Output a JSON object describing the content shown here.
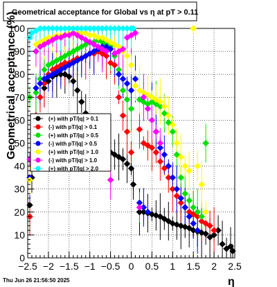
{
  "chart_data": {
    "type": "scatter",
    "title": "Geometrical acceptance for Global vs   η  at pT > 0.11",
    "xlabel": "η",
    "ylabel": "Geometrical acceptance (%)",
    "xlim": [
      -2.5,
      2.5
    ],
    "ylim": [
      0,
      100
    ],
    "grid": true,
    "legend_position": "left-middle",
    "x_ticks": [
      -2.5,
      -2,
      -1.5,
      -1,
      -0.5,
      0,
      0.5,
      1,
      1.5,
      2,
      2.5
    ],
    "x_tick_labels": [
      "−2.5",
      "−2",
      "−1.5",
      "−1",
      "−0.5",
      "0",
      "0.5",
      "1",
      "1.5",
      "2",
      "2.5"
    ],
    "y_ticks": [
      0,
      10,
      20,
      30,
      40,
      50,
      60,
      70,
      80,
      90,
      100
    ],
    "y_tick_labels": [
      "0",
      "10",
      "20",
      "30",
      "40",
      "50",
      "60",
      "70",
      "80",
      "90",
      "100"
    ],
    "series": [
      {
        "name": "(+) with pT/|q| > 0.1",
        "color": "#000000",
        "x": [
          -2.45,
          -2.4,
          -2.3,
          -2.2,
          -2.1,
          -2.0,
          -1.9,
          -1.8,
          -1.7,
          -1.6,
          -1.5,
          -1.4,
          -1.3,
          -1.2,
          -1.1,
          -1.0,
          -0.9,
          -0.8,
          -0.7,
          -0.6,
          -0.5,
          -0.4,
          -0.3,
          -0.2,
          -0.1,
          0.0,
          0.05,
          0.2,
          0.3,
          0.4,
          0.5,
          0.6,
          0.7,
          0.8,
          0.9,
          1.0,
          1.1,
          1.2,
          1.3,
          1.4,
          1.5,
          1.6,
          1.7,
          1.8,
          1.9,
          2.0,
          2.1,
          2.2,
          2.3,
          2.4,
          2.45
        ],
        "values": [
          23,
          35,
          62,
          70,
          74,
          77,
          79,
          80,
          80,
          80,
          79,
          77,
          73,
          68,
          63,
          58,
          54,
          51,
          49,
          47,
          46,
          45,
          44,
          43,
          41,
          39,
          32,
          20,
          20,
          19.5,
          19,
          18.5,
          18,
          17,
          16,
          15,
          14.5,
          14,
          13.5,
          13,
          12,
          11.5,
          11,
          10.5,
          9,
          10,
          12,
          6,
          4,
          5,
          3
        ]
      },
      {
        "name": "(-) with pT/|q| > 0.1",
        "color": "#ff0000",
        "x": [
          -2.45,
          -2.3,
          -2.2,
          -2.1,
          -2.0,
          -1.9,
          -1.8,
          -1.7,
          -1.6,
          -1.5,
          -1.4,
          -1.3,
          -1.2,
          -1.1,
          -1.0,
          -0.9,
          -0.8,
          -0.7,
          -0.6,
          -0.5,
          -0.4,
          -0.3,
          -0.2,
          -0.1,
          0.0,
          0.2,
          0.3,
          0.4,
          0.5,
          0.6,
          0.7,
          0.8,
          0.9,
          1.0,
          1.1,
          1.2,
          1.3,
          1.4,
          1.5,
          1.6,
          1.7,
          1.8,
          1.9,
          2.0
        ],
        "values": [
          18,
          62,
          70,
          76,
          80,
          82,
          83,
          84,
          85,
          85,
          86,
          87,
          87,
          88,
          89,
          89,
          90,
          89,
          88,
          85,
          84,
          70,
          62,
          55,
          46,
          56,
          50,
          49,
          48,
          46,
          42,
          39,
          35,
          30,
          27,
          24,
          22,
          20,
          19,
          18,
          16,
          15,
          14,
          12
        ]
      },
      {
        "name": "(+) with pT/|q| > 0.5",
        "color": "#00e000",
        "x": [
          -2.45,
          -2.3,
          -2.2,
          -2.1,
          -2.0,
          -1.9,
          -1.8,
          -1.7,
          -1.6,
          -1.5,
          -1.4,
          -1.3,
          -1.2,
          -1.1,
          -1.0,
          -0.9,
          -0.8,
          -0.7,
          -0.6,
          -0.5,
          -0.4,
          -0.3,
          -0.2,
          -0.1,
          0.0,
          0.2,
          0.3,
          0.4,
          0.5,
          0.6,
          0.7,
          0.8,
          0.9,
          1.0,
          1.1,
          1.2,
          1.3,
          1.4,
          1.5,
          1.6,
          1.7,
          1.8
        ],
        "values": [
          70,
          72,
          78,
          82,
          84,
          85,
          86,
          87,
          88,
          89,
          90,
          91,
          92,
          93,
          94,
          94,
          95,
          94,
          93,
          92,
          88,
          82,
          73,
          69,
          65,
          69,
          68,
          67,
          68,
          67,
          66,
          63,
          59,
          55,
          45,
          35,
          28,
          25,
          22,
          20,
          18,
          50
        ]
      },
      {
        "name": "(-) with pT/|q| > 0.5",
        "color": "#0000ff",
        "x": [
          -2.45,
          -2.3,
          -2.2,
          -2.1,
          -2.0,
          -1.9,
          -1.8,
          -1.7,
          -1.6,
          -1.5,
          -1.4,
          -1.3,
          -1.2,
          -1.1,
          -1.0,
          -0.9,
          -0.8,
          -0.7,
          -0.6,
          -0.5,
          -0.4,
          -0.3,
          -0.2,
          -0.1,
          0.0,
          0.1,
          0.2,
          0.3,
          0.4,
          0.5,
          0.6,
          0.7,
          0.8,
          0.9,
          1.0,
          1.1,
          1.2,
          1.3,
          1.4,
          1.5,
          1.6
        ],
        "values": [
          35,
          74,
          76,
          78,
          79,
          80,
          81,
          82,
          83,
          84,
          85,
          86,
          87,
          88,
          89,
          90,
          91,
          92,
          92,
          91,
          89,
          80,
          78,
          76,
          73,
          78,
          24,
          22,
          20,
          70,
          55,
          48,
          45,
          40,
          35,
          30,
          26,
          22,
          18,
          15,
          12
        ]
      },
      {
        "name": "(+) with pT/|q| > 1.0",
        "color": "#ffff00",
        "x": [
          -2.45,
          -2.3,
          -2.2,
          -2.1,
          -2.0,
          -1.9,
          -1.8,
          -1.7,
          -1.6,
          -1.5,
          -1.4,
          -1.3,
          -1.2,
          -1.1,
          -1.0,
          -0.9,
          -0.8,
          -0.7,
          -0.6,
          -0.5,
          -0.4,
          -0.3,
          -0.2,
          -0.1,
          0.0,
          0.1,
          0.2,
          0.3,
          0.4,
          0.5,
          0.6,
          0.7,
          0.8,
          0.9,
          1.0,
          1.1,
          1.2,
          1.3,
          1.4,
          1.5,
          1.6,
          1.7,
          1.8
        ],
        "values": [
          34,
          93,
          94,
          95,
          96,
          96,
          97,
          97,
          97,
          98,
          98,
          98,
          98,
          98,
          97,
          97,
          96,
          96,
          95,
          94,
          93,
          92,
          90,
          88,
          84,
          75,
          73,
          72,
          71,
          70,
          69,
          68,
          66,
          62,
          58,
          50,
          44,
          40,
          38,
          100,
          40,
          32,
          20
        ]
      },
      {
        "name": "(-) with pT/|q| > 1.0",
        "color": "#ff00ff",
        "x": [
          -2.45,
          -2.3,
          -2.2,
          -2.1,
          -2.0,
          -1.9,
          -1.8,
          -1.7,
          -1.6,
          -1.5,
          -1.4,
          -1.3,
          -1.2,
          -1.1,
          -1.0,
          -0.9,
          -0.8,
          -0.7,
          -0.6,
          -0.5,
          -0.4,
          -0.3,
          -0.2,
          -0.1,
          0.0,
          0.1,
          0.2,
          0.3,
          0.4,
          0.5,
          0.6,
          0.7
        ],
        "values": [
          43,
          90,
          92,
          93,
          94,
          95,
          96,
          96,
          97,
          97,
          98,
          97,
          96,
          95,
          94,
          93,
          92,
          91,
          90,
          34,
          89,
          90,
          91,
          96,
          97,
          98,
          22,
          70,
          65,
          60,
          55,
          50
        ]
      },
      {
        "name": "(+) with pT/|q| > 2.0",
        "color": "#00ffff",
        "x": [
          -2.45,
          -2.4,
          -2.3,
          -2.2,
          -2.1,
          -2.0,
          -1.9,
          -1.8,
          -1.7,
          -1.6,
          -1.5,
          -1.4,
          -1.3,
          -1.2,
          -1.1,
          -1.0,
          -0.9,
          -0.8,
          -0.7,
          -0.6,
          -0.5,
          -0.4,
          -0.3,
          -0.2,
          -0.1,
          0.0,
          0.05
        ],
        "values": [
          96,
          98,
          99,
          100,
          100,
          100,
          100,
          100,
          100,
          100,
          100,
          100,
          100,
          100,
          100,
          100,
          100,
          100,
          100,
          100,
          100,
          100,
          100,
          100,
          100,
          100,
          100
        ]
      }
    ]
  },
  "stamp": "Thu Jun 26 21:56:50 2025"
}
